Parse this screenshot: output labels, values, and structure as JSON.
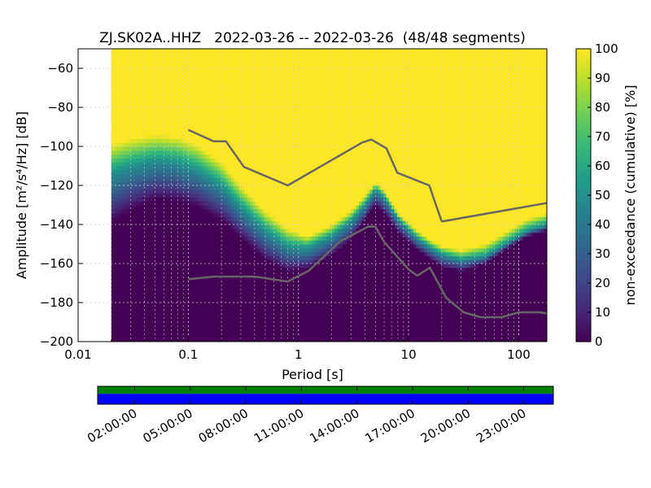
{
  "chart_data": {
    "type": "heatmap",
    "title": "ZJ.SK02A..HHZ   2022-03-26 -- 2022-03-26  (48/48 segments)",
    "xlabel": "Period [s]",
    "ylabel": "Amplitude [m²/s⁴/Hz] [dB]",
    "x_scale": "log",
    "xlim": [
      0.01,
      180
    ],
    "ylim": [
      -200,
      -50
    ],
    "x_ticks": [
      {
        "value": 0.01,
        "label": "0.01"
      },
      {
        "value": 0.1,
        "label": "0.1"
      },
      {
        "value": 1,
        "label": "1"
      },
      {
        "value": 10,
        "label": "10"
      },
      {
        "value": 100,
        "label": "100"
      }
    ],
    "y_ticks": [
      {
        "value": -60,
        "label": "−60"
      },
      {
        "value": -80,
        "label": "−80"
      },
      {
        "value": -100,
        "label": "−100"
      },
      {
        "value": -120,
        "label": "−120"
      },
      {
        "value": -140,
        "label": "−140"
      },
      {
        "value": -160,
        "label": "−160"
      },
      {
        "value": -180,
        "label": "−180"
      },
      {
        "value": -200,
        "label": "−200"
      }
    ],
    "grid": true,
    "period_range": [
      0.02,
      180
    ],
    "psd_bands": {
      "period": [
        0.02,
        0.03,
        0.05,
        0.08,
        0.12,
        0.2,
        0.3,
        0.5,
        0.8,
        1.2,
        2,
        3,
        4,
        5,
        6,
        8,
        12,
        16,
        20,
        30,
        50,
        80,
        120,
        180
      ],
      "p0": [
        -139,
        -133,
        -127,
        -128,
        -131,
        -138,
        -147,
        -158,
        -164,
        -163,
        -156,
        -148,
        -138,
        -130,
        -134,
        -144,
        -153,
        -158,
        -162,
        -164,
        -160,
        -152,
        -146,
        -143
      ],
      "p50": [
        -114,
        -110,
        -107,
        -108,
        -112,
        -120,
        -131,
        -143,
        -151,
        -152,
        -146,
        -138,
        -130,
        -122,
        -126,
        -137,
        -147,
        -152,
        -155,
        -158,
        -156,
        -149,
        -143,
        -140
      ],
      "p100": [
        -99,
        -96,
        -94,
        -95,
        -99,
        -108,
        -120,
        -133,
        -142,
        -146,
        -140,
        -133,
        -125,
        -118,
        -122,
        -134,
        -143,
        -148,
        -151,
        -153,
        -150,
        -143,
        -137,
        -134
      ]
    },
    "noise_models": [
      {
        "period": [
          0.1,
          0.17,
          0.22,
          0.32,
          0.8,
          3.8,
          4.6,
          6.3,
          7.9,
          15.4,
          20
        ],
        "values": [
          -91.5,
          -97.4,
          -97.4,
          -110.5,
          -120,
          -98,
          -96.5,
          -101,
          -113.5,
          -120,
          -138.5
        ]
      },
      {
        "period": [
          20,
          180
        ],
        "values": [
          -138.5,
          -129
        ]
      },
      {
        "period": [
          0.1,
          0.17,
          0.4,
          0.8,
          1.24,
          2.4,
          4.3,
          5.0,
          6.0,
          10,
          12,
          15.6,
          21.9,
          31.6,
          45,
          70,
          101,
          154,
          180
        ],
        "values": [
          -168,
          -166.7,
          -166.7,
          -169.2,
          -163.7,
          -148.6,
          -141.1,
          -141.1,
          -149,
          -163,
          -166.2,
          -162.1,
          -177.5,
          -185,
          -187.5,
          -187.5,
          -185,
          -185,
          -185.5
        ]
      }
    ],
    "colorbar": {
      "label": "non-exceedance (cumulative) [%]",
      "min": 0,
      "max": 100,
      "ticks": [
        0,
        10,
        20,
        30,
        40,
        50,
        60,
        70,
        80,
        90,
        100
      ]
    },
    "coverage": {
      "time_labels": [
        "02:00:00",
        "05:00:00",
        "08:00:00",
        "11:00:00",
        "14:00:00",
        "17:00:00",
        "20:00:00",
        "23:00:00"
      ],
      "data_color": "#008000",
      "used_color": "#0000ff"
    },
    "colors": {
      "viridis_low": "#440154",
      "viridis_high": "#fde725",
      "model_line": "#666666"
    }
  }
}
